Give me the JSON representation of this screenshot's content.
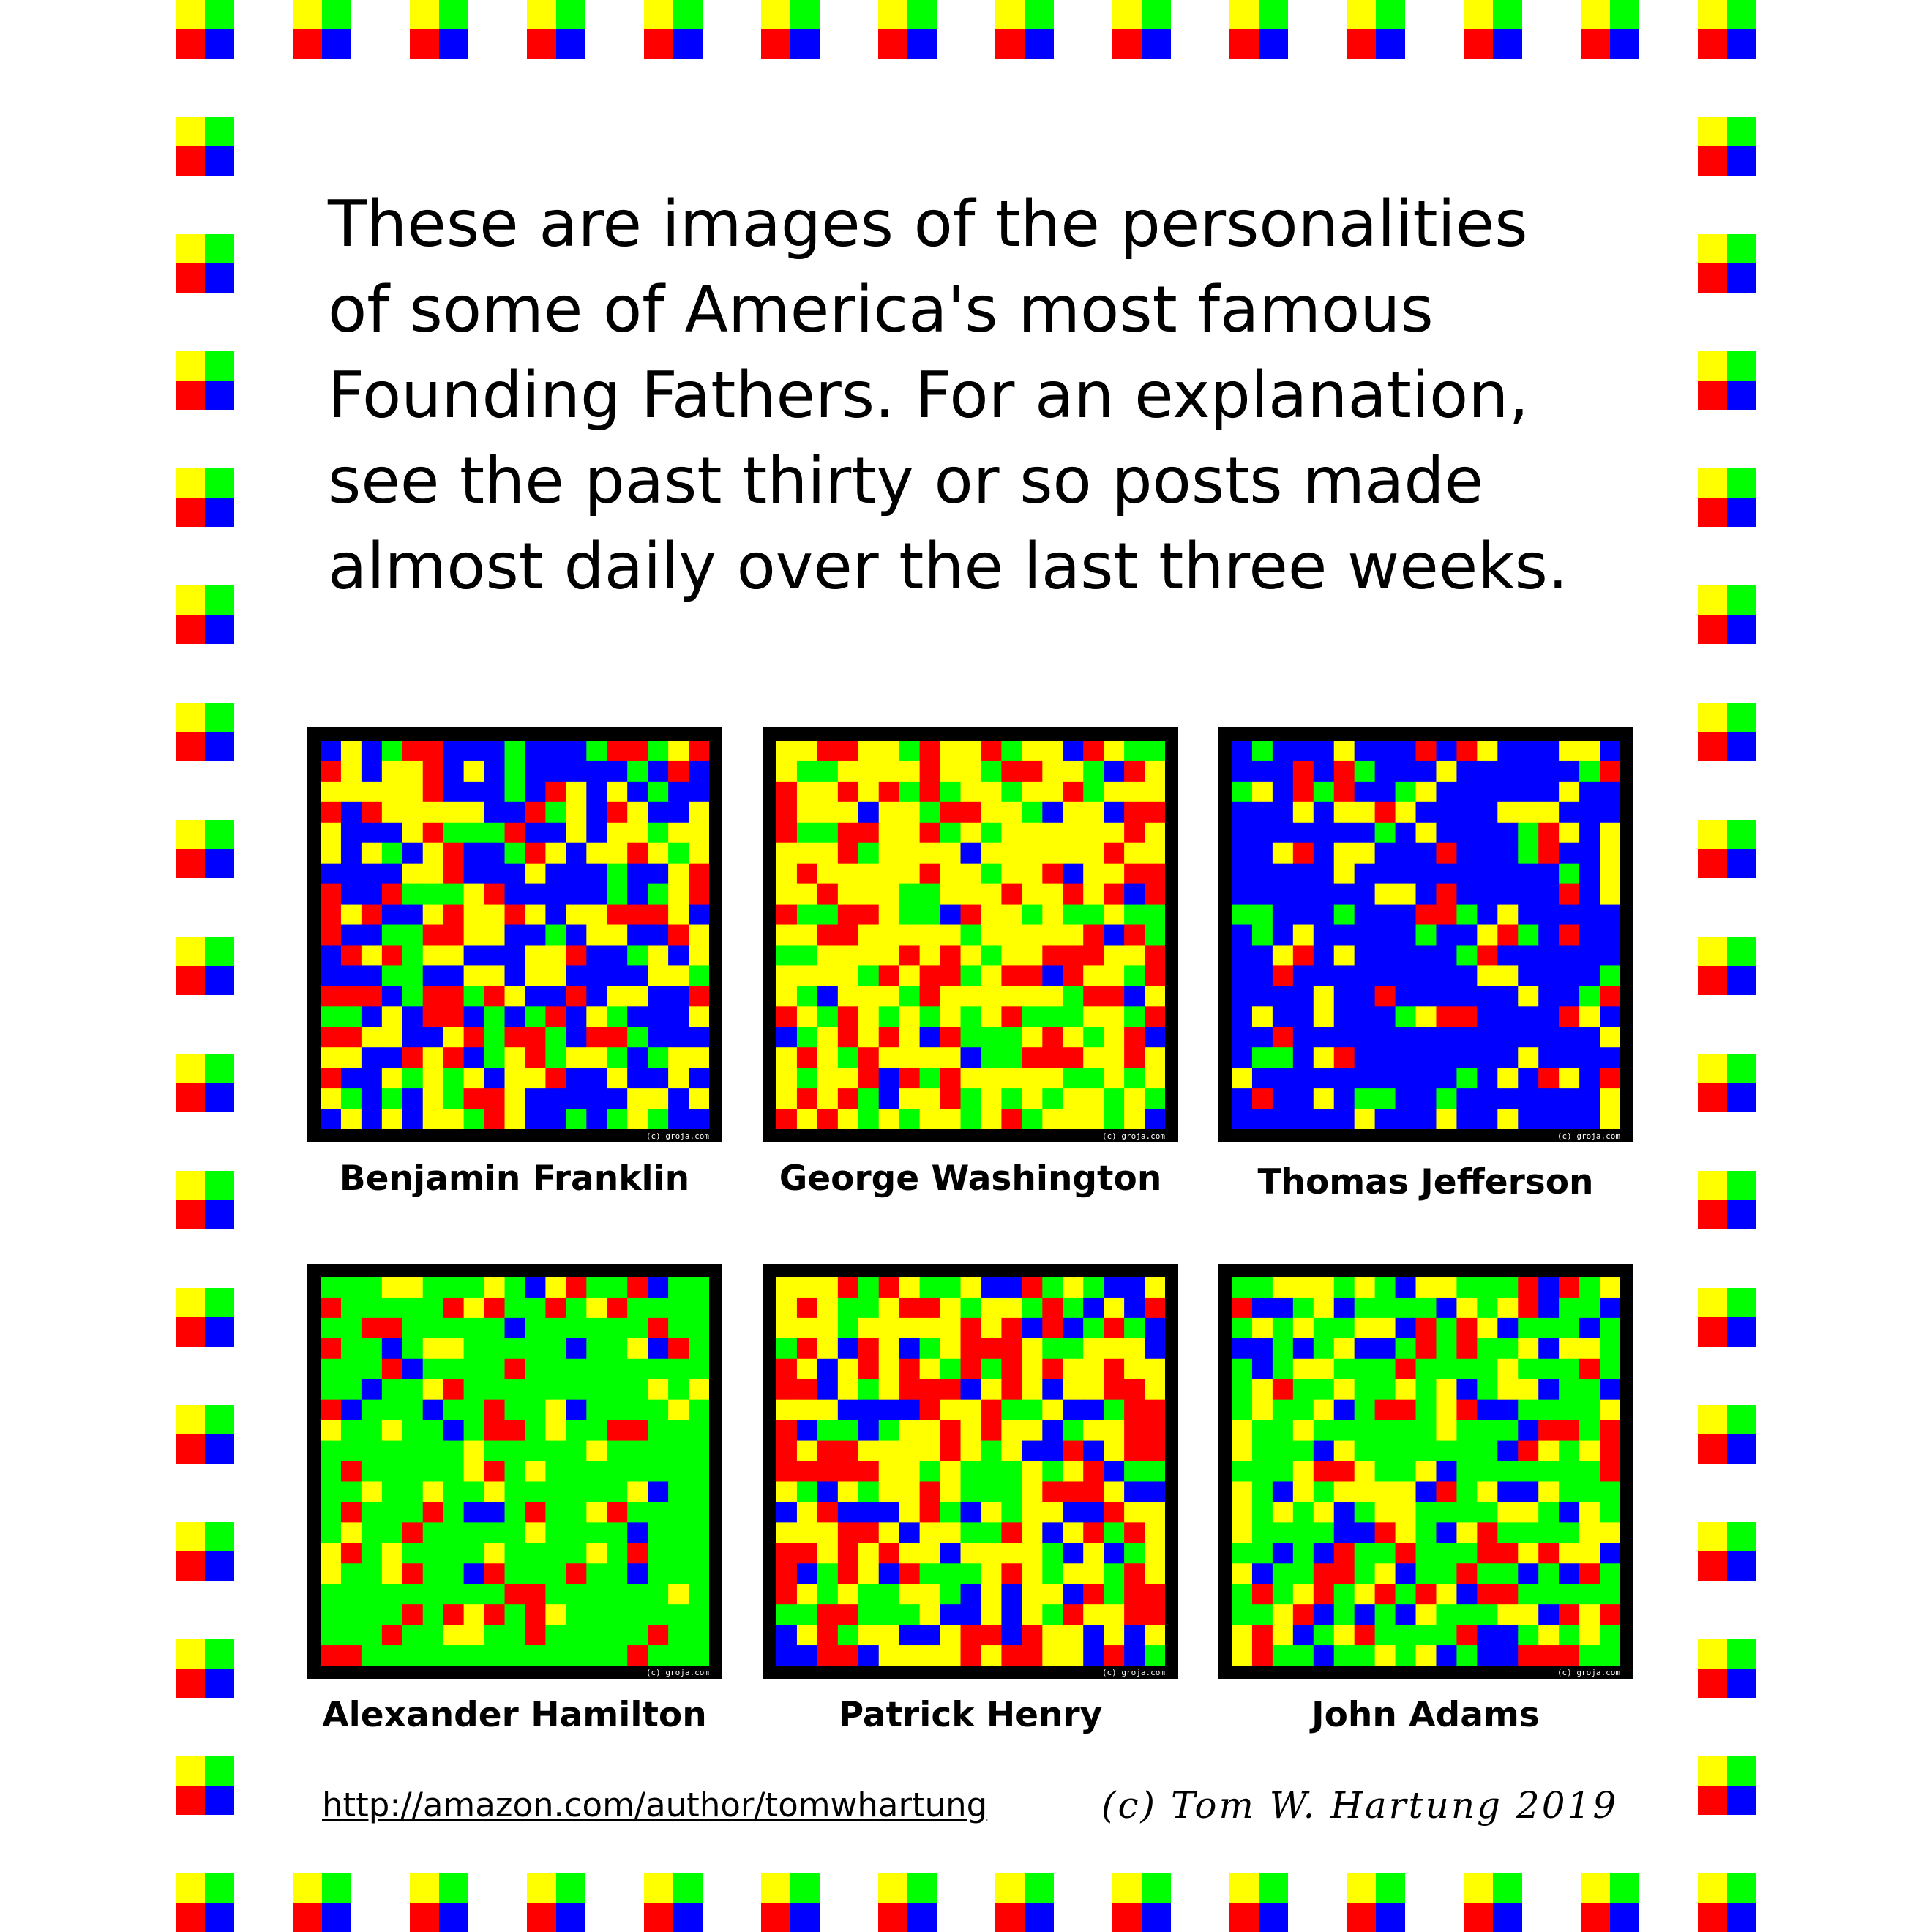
{
  "colors": {
    "yellow": "#ffff00",
    "green": "#00ff00",
    "red": "#ff0000",
    "blue": "#0000ff",
    "frame": "#000000",
    "background": "#ffffff"
  },
  "border": {
    "tile_icon": "four-color-square-icon",
    "tile_colors": [
      "yellow",
      "green",
      "red",
      "blue"
    ]
  },
  "intro_text": "These are images of the personalities\nof some of America's most famous\nFounding Fathers.  For an explanation,\nsee the past thirty or so posts made\nalmost daily over the last three weeks.",
  "portraits": [
    {
      "name": "Benjamin Franklin",
      "watermark": "(c) groja.com"
    },
    {
      "name": "George Washington",
      "watermark": "(c) groja.com"
    },
    {
      "name": "Thomas Jefferson",
      "watermark": "(c) groja.com"
    },
    {
      "name": "Alexander Hamilton",
      "watermark": "(c) groja.com"
    },
    {
      "name": "Patrick Henry",
      "watermark": "(c) groja.com"
    },
    {
      "name": "John Adams",
      "watermark": "(c) groja.com"
    }
  ],
  "footer": {
    "link_text": "http://amazon.com/author/tomwhartung",
    "credit": "(c) Tom W. Hartung 2019"
  }
}
